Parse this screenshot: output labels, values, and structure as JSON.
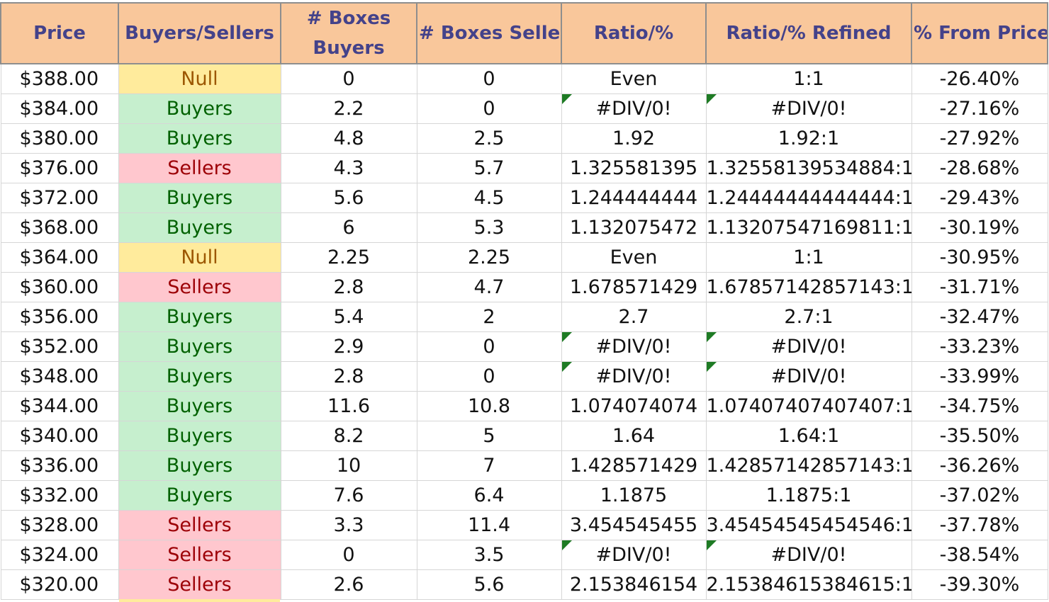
{
  "headers": {
    "price": "Price",
    "buyers_sellers": "Buyers/Sellers",
    "boxes_buyers": "# Boxes Buyers",
    "boxes_sellers": "# Boxes Sellers",
    "ratio": "Ratio/%",
    "ratio_refined": "Ratio/% Refined",
    "pct_from_price": "% From Price"
  },
  "rows": [
    {
      "price": "$388.00",
      "side": "Null",
      "buyers": "0",
      "sellers": "0",
      "ratio": "Even",
      "refined": "1:1",
      "pct": "-26.40%"
    },
    {
      "price": "$384.00",
      "side": "Buyers",
      "buyers": "2.2",
      "sellers": "0",
      "ratio": "#DIV/0!",
      "refined": "#DIV/0!",
      "pct": "-27.16%"
    },
    {
      "price": "$380.00",
      "side": "Buyers",
      "buyers": "4.8",
      "sellers": "2.5",
      "ratio": "1.92",
      "refined": "1.92:1",
      "pct": "-27.92%"
    },
    {
      "price": "$376.00",
      "side": "Sellers",
      "buyers": "4.3",
      "sellers": "5.7",
      "ratio": "1.325581395",
      "refined": "1.32558139534884:1",
      "pct": "-28.68%"
    },
    {
      "price": "$372.00",
      "side": "Buyers",
      "buyers": "5.6",
      "sellers": "4.5",
      "ratio": "1.244444444",
      "refined": "1.24444444444444:1",
      "pct": "-29.43%"
    },
    {
      "price": "$368.00",
      "side": "Buyers",
      "buyers": "6",
      "sellers": "5.3",
      "ratio": "1.132075472",
      "refined": "1.13207547169811:1",
      "pct": "-30.19%"
    },
    {
      "price": "$364.00",
      "side": "Null",
      "buyers": "2.25",
      "sellers": "2.25",
      "ratio": "Even",
      "refined": "1:1",
      "pct": "-30.95%"
    },
    {
      "price": "$360.00",
      "side": "Sellers",
      "buyers": "2.8",
      "sellers": "4.7",
      "ratio": "1.678571429",
      "refined": "1.67857142857143:1",
      "pct": "-31.71%"
    },
    {
      "price": "$356.00",
      "side": "Buyers",
      "buyers": "5.4",
      "sellers": "2",
      "ratio": "2.7",
      "refined": "2.7:1",
      "pct": "-32.47%"
    },
    {
      "price": "$352.00",
      "side": "Buyers",
      "buyers": "2.9",
      "sellers": "0",
      "ratio": "#DIV/0!",
      "refined": "#DIV/0!",
      "pct": "-33.23%"
    },
    {
      "price": "$348.00",
      "side": "Buyers",
      "buyers": "2.8",
      "sellers": "0",
      "ratio": "#DIV/0!",
      "refined": "#DIV/0!",
      "pct": "-33.99%"
    },
    {
      "price": "$344.00",
      "side": "Buyers",
      "buyers": "11.6",
      "sellers": "10.8",
      "ratio": "1.074074074",
      "refined": "1.07407407407407:1",
      "pct": "-34.75%"
    },
    {
      "price": "$340.00",
      "side": "Buyers",
      "buyers": "8.2",
      "sellers": "5",
      "ratio": "1.64",
      "refined": "1.64:1",
      "pct": "-35.50%"
    },
    {
      "price": "$336.00",
      "side": "Buyers",
      "buyers": "10",
      "sellers": "7",
      "ratio": "1.428571429",
      "refined": "1.42857142857143:1",
      "pct": "-36.26%"
    },
    {
      "price": "$332.00",
      "side": "Buyers",
      "buyers": "7.6",
      "sellers": "6.4",
      "ratio": "1.1875",
      "refined": "1.1875:1",
      "pct": "-37.02%"
    },
    {
      "price": "$328.00",
      "side": "Sellers",
      "buyers": "3.3",
      "sellers": "11.4",
      "ratio": "3.454545455",
      "refined": "3.45454545454546:1",
      "pct": "-37.78%"
    },
    {
      "price": "$324.00",
      "side": "Sellers",
      "buyers": "0",
      "sellers": "3.5",
      "ratio": "#DIV/0!",
      "refined": "#DIV/0!",
      "pct": "-38.54%"
    },
    {
      "price": "$320.00",
      "side": "Sellers",
      "buyers": "2.6",
      "sellers": "5.6",
      "ratio": "2.153846154",
      "refined": "2.15384615384615:1",
      "pct": "-39.30%"
    }
  ],
  "colors": {
    "header_bg": "#f9c79b",
    "header_text": "#44428a",
    "buyers_bg": "#c6efce",
    "buyers_text": "#006100",
    "sellers_bg": "#ffc7ce",
    "sellers_text": "#9c0006",
    "null_bg": "#ffeb9c",
    "null_text": "#9c5700",
    "error_indicator": "#1e7b24"
  }
}
